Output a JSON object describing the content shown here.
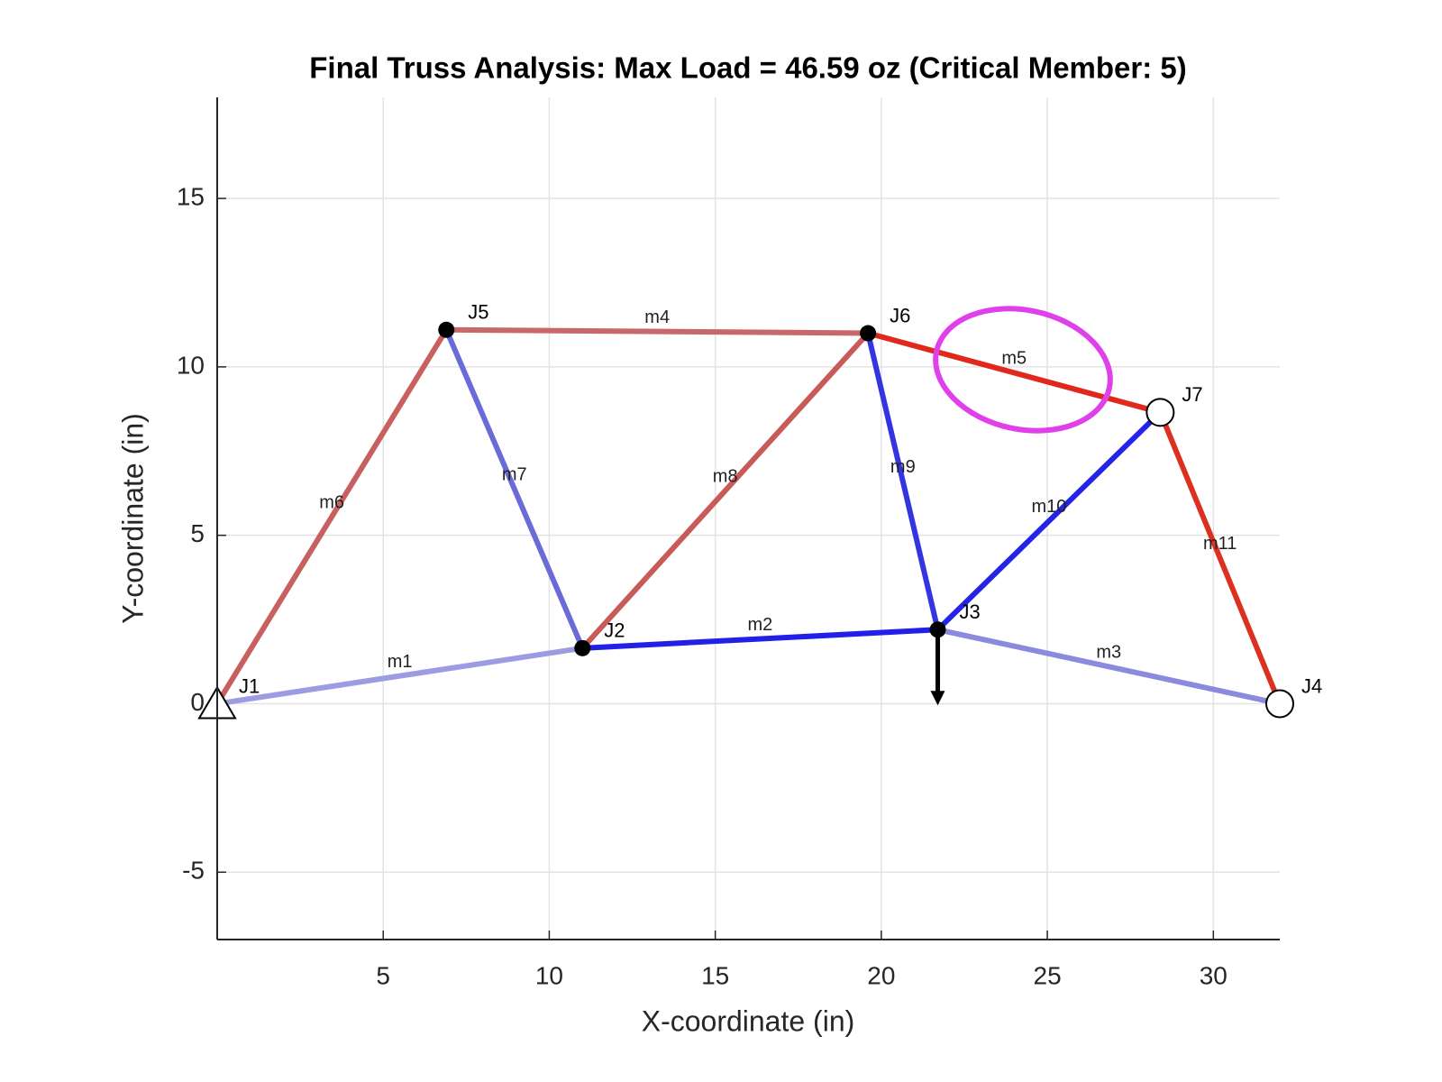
{
  "chart_data": {
    "type": "truss",
    "title": "Final Truss Analysis: Max Load = 46.59 oz (Critical Member: 5)",
    "xlabel": "X-coordinate (in)",
    "ylabel": "Y-coordinate (in)",
    "xlim": [
      0,
      32
    ],
    "ylim": [
      -7,
      18
    ],
    "xticks": [
      5,
      10,
      15,
      20,
      25,
      30
    ],
    "yticks": [
      -5,
      0,
      5,
      10,
      15
    ],
    "grid": true,
    "joints": {
      "labels": [
        "J1",
        "J2",
        "J3",
        "J4",
        "J5",
        "J6",
        "J7"
      ],
      "x": [
        0,
        11,
        21.7,
        32,
        6.9,
        19.6,
        28.4
      ],
      "y": [
        0,
        1.65,
        2.2,
        0,
        11.1,
        11,
        8.65
      ]
    },
    "members": [
      {
        "label": "m1",
        "color": "#9c9ce2",
        "x": [
          0,
          11
        ],
        "y": [
          0,
          1.65
        ]
      },
      {
        "label": "m2",
        "color": "#2020e8",
        "x": [
          11,
          21.7
        ],
        "y": [
          1.65,
          2.2
        ]
      },
      {
        "label": "m3",
        "color": "#8a8ade",
        "x": [
          21.7,
          32
        ],
        "y": [
          2.2,
          0
        ]
      },
      {
        "label": "m4",
        "color": "#c86868",
        "x": [
          6.9,
          19.6
        ],
        "y": [
          11.1,
          11
        ]
      },
      {
        "label": "m5",
        "color": "#e0281c",
        "x": [
          19.6,
          28.4
        ],
        "y": [
          11,
          8.65
        ]
      },
      {
        "label": "m6",
        "color": "#c86060",
        "x": [
          0,
          6.9
        ],
        "y": [
          0,
          11.1
        ]
      },
      {
        "label": "m7",
        "color": "#6a6ad8",
        "x": [
          6.9,
          11
        ],
        "y": [
          11.1,
          1.65
        ]
      },
      {
        "label": "m8",
        "color": "#c85a58",
        "x": [
          11,
          19.6
        ],
        "y": [
          1.65,
          11
        ]
      },
      {
        "label": "m9",
        "color": "#3434e0",
        "x": [
          19.6,
          21.7
        ],
        "y": [
          11,
          2.2
        ]
      },
      {
        "label": "m10",
        "color": "#2424e6",
        "x": [
          21.7,
          28.4
        ],
        "y": [
          2.2,
          8.65
        ]
      },
      {
        "label": "m11",
        "color": "#dc3020",
        "x": [
          28.4,
          32
        ],
        "y": [
          8.65,
          0
        ]
      }
    ]
  }
}
